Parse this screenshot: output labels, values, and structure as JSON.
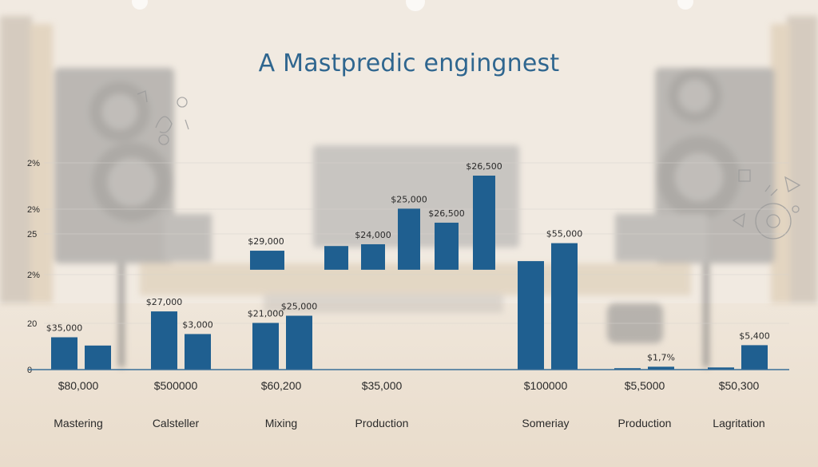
{
  "chart_data": {
    "type": "bar",
    "title": "A Mastpredic engingnest",
    "y_ticks": [
      "0",
      "20",
      "2%",
      "25",
      "2%",
      "2%"
    ],
    "groups": [
      {
        "category": "Mastering",
        "group_label": "$80,000"
      },
      {
        "category": "Calsteller",
        "group_label": "$500000"
      },
      {
        "category": "Mixing",
        "group_label": "$60,200"
      },
      {
        "category": "Production",
        "group_label": "$35,000"
      },
      {
        "category": "Someriay",
        "group_label": "$100000"
      },
      {
        "category": "Production",
        "group_label": "$5,5000"
      },
      {
        "category": "Lagritation",
        "group_label": "$50,300"
      }
    ],
    "bars": [
      {
        "group": 0,
        "value": 9.0,
        "base": 0,
        "label": "$35,000"
      },
      {
        "group": 0,
        "value": 6.7,
        "base": 0,
        "label": ""
      },
      {
        "group": 1,
        "value": 16.2,
        "base": 0,
        "label": "$27,000"
      },
      {
        "group": 1,
        "value": 9.9,
        "base": 0,
        "label": "$3,000"
      },
      {
        "group": 2,
        "value": 13.0,
        "base": 0,
        "label": "$21,000"
      },
      {
        "group": 2,
        "value": 15.0,
        "base": 0,
        "label": "$25,000"
      },
      {
        "group": 2,
        "value": 5.3,
        "base": 27.8,
        "label": "$29,000"
      },
      {
        "group": 3,
        "value": 6.6,
        "base": 27.8,
        "label": ""
      },
      {
        "group": 3,
        "value": 7.1,
        "base": 27.8,
        "label": "$24,000"
      },
      {
        "group": 3,
        "value": 17.0,
        "base": 27.8,
        "label": "$25,000"
      },
      {
        "group": 3,
        "value": 13.1,
        "base": 27.8,
        "label": "$26,500"
      },
      {
        "group": 3,
        "value": 26.2,
        "base": 27.8,
        "label": "$26,500"
      },
      {
        "group": 4,
        "value": 30.2,
        "base": 0,
        "label": ""
      },
      {
        "group": 4,
        "value": 35.2,
        "base": 0,
        "label": "$55,000"
      },
      {
        "group": 5,
        "value": 0.4,
        "base": 0,
        "label": ""
      },
      {
        "group": 5,
        "value": 0.8,
        "base": 0,
        "label": "$1,7%"
      },
      {
        "group": 6,
        "value": 0.6,
        "base": 0,
        "label": ""
      },
      {
        "group": 6,
        "value": 6.8,
        "base": 0,
        "label": "$5,400"
      }
    ],
    "colors": {
      "bar": "#1f5f90",
      "text": "#2a2a2a",
      "title": "#2f668f",
      "axis": "#3a6f98"
    },
    "grid": true
  }
}
